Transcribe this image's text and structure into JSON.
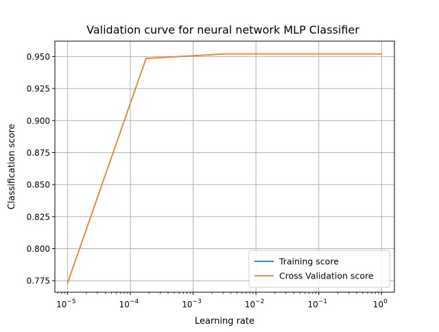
{
  "chart_data": {
    "type": "line",
    "title": "Validation curve for neural network MLP Classifier",
    "xlabel": "Learning rate",
    "ylabel": "Classification score",
    "xscale": "log",
    "xlim": [
      6.3e-06,
      1.6
    ],
    "ylim": [
      0.766,
      0.962
    ],
    "grid": true,
    "legend_position": "lower-right",
    "x": [
      1e-05,
      0.000178,
      0.00316,
      0.0562,
      1
    ],
    "series": [
      {
        "name": "Training score",
        "color": "#1f77b4",
        "values": [
          0.773,
          0.9485,
          0.952,
          0.952,
          0.952
        ]
      },
      {
        "name": "Cross Validation score",
        "color": "#ff7f0e",
        "values": [
          0.773,
          0.9485,
          0.952,
          0.952,
          0.952
        ]
      }
    ],
    "yticks": [
      "0.775",
      "0.800",
      "0.825",
      "0.850",
      "0.875",
      "0.900",
      "0.925",
      "0.950"
    ],
    "ytick_values": [
      0.775,
      0.8,
      0.825,
      0.85,
      0.875,
      0.9,
      0.925,
      0.95
    ],
    "xticks": [
      {
        "value": 1e-05,
        "base": "10",
        "exp": "−5"
      },
      {
        "value": 0.0001,
        "base": "10",
        "exp": "−4"
      },
      {
        "value": 0.001,
        "base": "10",
        "exp": "−3"
      },
      {
        "value": 0.01,
        "base": "10",
        "exp": "−2"
      },
      {
        "value": 0.1,
        "base": "10",
        "exp": "−1"
      },
      {
        "value": 1,
        "base": "10",
        "exp": "0"
      }
    ]
  }
}
